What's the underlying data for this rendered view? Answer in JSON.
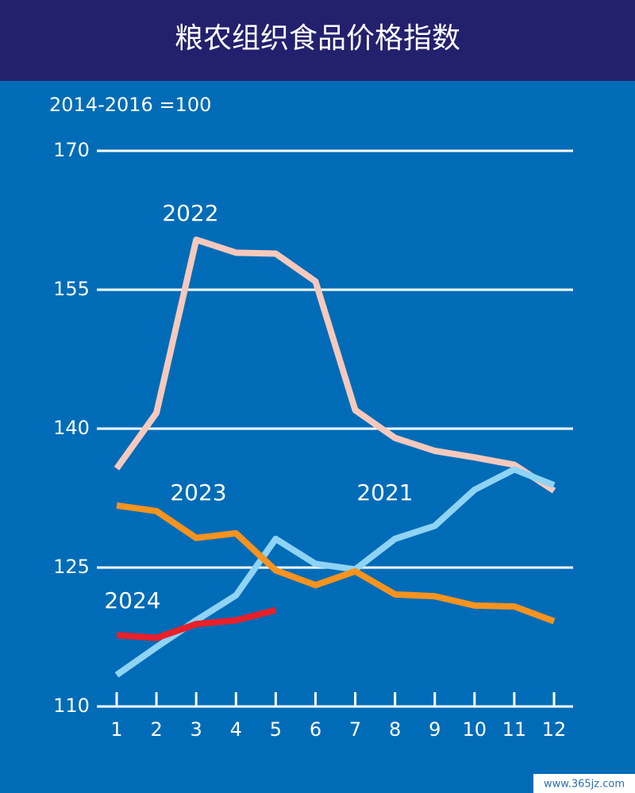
{
  "chart_data": {
    "type": "line",
    "title": "粮农组织食品价格指数",
    "subtitle": "2014-2016 =100",
    "x": [
      1,
      2,
      3,
      4,
      5,
      6,
      7,
      8,
      9,
      10,
      11,
      12
    ],
    "xlim": [
      1,
      12
    ],
    "xticks": [
      1,
      2,
      3,
      4,
      5,
      6,
      7,
      8,
      9,
      10,
      11,
      12
    ],
    "ylim": [
      110,
      170
    ],
    "yticks": [
      110,
      125,
      140,
      155,
      170
    ],
    "grid": true,
    "series": [
      {
        "name": "2022",
        "color": "#f7c9bd",
        "values": [
          135.7,
          141.7,
          160.4,
          159.0,
          158.9,
          155.9,
          142.0,
          139.0,
          137.6,
          136.9,
          136.1,
          133.3
        ]
      },
      {
        "name": "2021",
        "color": "#8fd3f5",
        "values": [
          113.4,
          116.4,
          119.3,
          122.0,
          128.1,
          125.4,
          124.8,
          128.1,
          129.5,
          133.4,
          135.6,
          133.9
        ]
      },
      {
        "name": "2023",
        "color": "#f7931e",
        "values": [
          131.7,
          131.1,
          128.2,
          128.7,
          124.7,
          123.1,
          124.6,
          122.1,
          121.9,
          120.9,
          120.8,
          119.2
        ]
      },
      {
        "name": "2024",
        "color": "#e8202a",
        "values": [
          117.7,
          117.4,
          118.9,
          119.3,
          120.4,
          null,
          null,
          null,
          null,
          null,
          null,
          null
        ]
      }
    ],
    "watermark": "www.365jz.com"
  }
}
